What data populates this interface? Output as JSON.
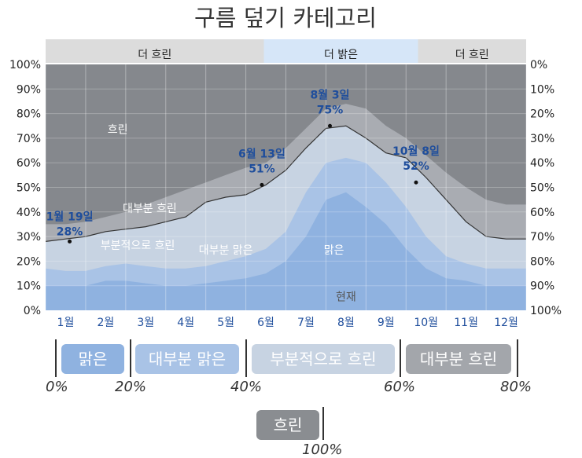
{
  "chart_data": {
    "type": "area",
    "title": "구름 덮기 카테고리",
    "top_bands": [
      {
        "label": "더 흐린",
        "from_month": 0,
        "to_month": 5.45,
        "color": "#dcdcdc"
      },
      {
        "label": "더 밝은",
        "from_month": 5.45,
        "to_month": 9.3,
        "color": "#d6e6f8"
      },
      {
        "label": "더 흐린",
        "from_month": 9.3,
        "to_month": 12,
        "color": "#dcdcdc"
      }
    ],
    "y_left_ticks": [
      "0%",
      "10%",
      "20%",
      "30%",
      "40%",
      "50%",
      "60%",
      "70%",
      "80%",
      "90%",
      "100%"
    ],
    "y_right_ticks": [
      "100%",
      "90%",
      "80%",
      "70%",
      "60%",
      "50%",
      "40%",
      "30%",
      "20%",
      "10%",
      "0%"
    ],
    "ylim": [
      0,
      100
    ],
    "months": [
      "1월",
      "2월",
      "3월",
      "4월",
      "5월",
      "6월",
      "7월",
      "8월",
      "9월",
      "10월",
      "11월",
      "12월"
    ],
    "x_month_points": [
      0,
      0.5,
      1,
      1.5,
      2,
      2.5,
      3,
      3.5,
      4,
      4.5,
      5,
      5.5,
      6,
      6.5,
      7,
      7.5,
      8,
      8.5,
      9,
      9.5,
      10,
      10.5,
      11,
      11.5,
      12
    ],
    "series": [
      {
        "name": "맑은",
        "color": "#8fb2e0",
        "values": [
          10,
          10,
          10,
          12,
          12,
          11,
          10,
          10,
          11,
          12,
          13,
          15,
          20,
          30,
          45,
          48,
          42,
          35,
          25,
          17,
          13,
          12,
          10,
          10,
          10
        ]
      },
      {
        "name": "대부분 맑은",
        "color": "#a9c3e6",
        "values": [
          17,
          16,
          16,
          18,
          19,
          18,
          17,
          17,
          18,
          20,
          22,
          25,
          32,
          48,
          60,
          62,
          60,
          52,
          42,
          30,
          22,
          19,
          17,
          17,
          17
        ]
      },
      {
        "name": "부분적으로 흐린",
        "color": "#c7d3e2",
        "values": [
          28,
          29,
          30,
          32,
          33,
          34,
          36,
          38,
          44,
          46,
          47,
          51,
          57,
          66,
          74,
          75,
          70,
          64,
          62,
          54,
          45,
          36,
          30,
          29,
          29
        ]
      },
      {
        "name": "대부분 흐린",
        "color": "#a9acb2",
        "values": [
          35,
          35,
          36,
          38,
          40,
          43,
          46,
          49,
          52,
          55,
          58,
          60,
          66,
          74,
          82,
          84,
          82,
          75,
          70,
          63,
          56,
          50,
          45,
          43,
          43
        ]
      },
      {
        "name": "흐린",
        "color": "#85888d",
        "values": [
          100,
          100,
          100,
          100,
          100,
          100,
          100,
          100,
          100,
          100,
          100,
          100,
          100,
          100,
          100,
          100,
          100,
          100,
          100,
          100,
          100,
          100,
          100,
          100,
          100
        ]
      }
    ],
    "region_labels": [
      "흐린",
      "대부분 흐린",
      "부분적으로 흐린",
      "대부분 맑은",
      "맑은",
      "현재"
    ],
    "annotations": [
      {
        "month": 0.6,
        "value": 28,
        "date": "1월 19일",
        "pct": "28%"
      },
      {
        "month": 5.4,
        "value": 51,
        "date": "6월 13일",
        "pct": "51%"
      },
      {
        "month": 7.1,
        "value": 75,
        "date": "8월 3일",
        "pct": "75%"
      },
      {
        "month": 9.25,
        "value": 52,
        "date": "10월 8일",
        "pct": "52%"
      }
    ],
    "legend": {
      "boxes": [
        {
          "label": "맑은",
          "color": "#8fb2e0"
        },
        {
          "label": "대부분 맑은",
          "color": "#a9c3e6"
        },
        {
          "label": "부분적으로 흐린",
          "color": "#c7d3e2"
        },
        {
          "label": "대부분 흐린",
          "color": "#a3a6ab"
        },
        {
          "label": "흐린",
          "color": "#8a8d91"
        }
      ],
      "ticks": [
        "0%",
        "20%",
        "40%",
        "60%",
        "80%",
        "100%"
      ]
    }
  }
}
